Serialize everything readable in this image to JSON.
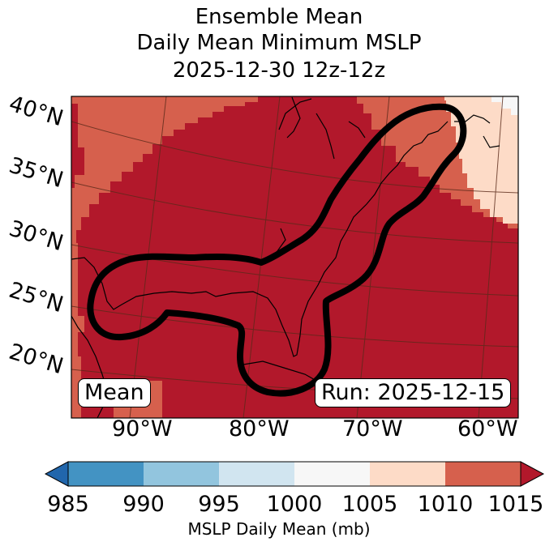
{
  "title": {
    "line1": "Ensemble Mean",
    "line2": "Daily Mean Minimum MSLP",
    "line3": "2025-12-30 12z-12z"
  },
  "map": {
    "region": "Gulf of Mexico and US East Coast",
    "lat_labels": [
      "40°N",
      "35°N",
      "30°N",
      "25°N",
      "20°N"
    ],
    "lon_labels": [
      "90°W",
      "80°W",
      "70°W",
      "60°W"
    ],
    "mean_label": "Mean",
    "run_label": "Run: 2025-12-15",
    "contour_description": "thick black contour around the low-pressure track"
  },
  "colorbar": {
    "ticks": [
      "985",
      "990",
      "995",
      "1000",
      "1005",
      "1010",
      "1015"
    ],
    "colors": [
      "#4393c3",
      "#92c5de",
      "#d1e5f0",
      "#f7f7f7",
      "#fddbc7",
      "#d6604d",
      "#b2182b"
    ],
    "under_color": "#2166ac",
    "over_color": "#b2182b",
    "label": "MSLP Daily Mean (mb)"
  },
  "chart_data": {
    "type": "heatmap",
    "title": "Ensemble Mean / Daily Mean Minimum MSLP / 2025-12-30 12z-12z",
    "variable": "MSLP Daily Mean (mb)",
    "levels": [
      985,
      990,
      995,
      1000,
      1005,
      1010,
      1015
    ],
    "extend": "both",
    "fields": [
      {
        "region": "Gulf of Mexico, Florida, western Atlantic, eastern US interior",
        "range_mb": [
          1015,
          1020
        ]
      },
      {
        "region": "western margin (Texas/Mexico) and northwestern corner",
        "range_mb": [
          1010,
          1015
        ]
      },
      {
        "region": "northeast corner near Nova Scotia/Newfoundland",
        "range_mb": [
          1005,
          1010
        ]
      },
      {
        "region": "far northeast corner",
        "range_mb": [
          1000,
          1005
        ]
      }
    ],
    "lon_range": [
      -97,
      -59
    ],
    "lat_range": [
      16,
      41
    ]
  }
}
